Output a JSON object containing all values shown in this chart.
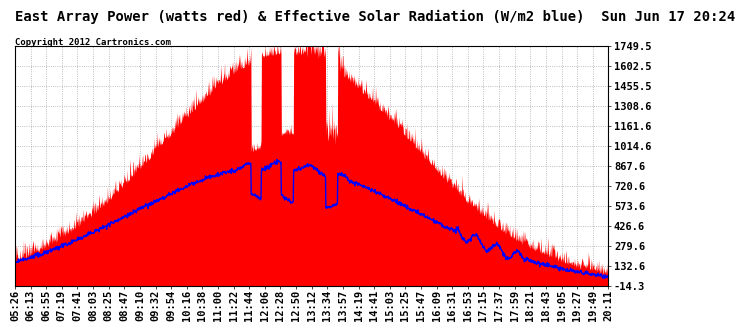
{
  "title": "East Array Power (watts red) & Effective Solar Radiation (W/m2 blue)  Sun Jun 17 20:24",
  "copyright": "Copyright 2012 Cartronics.com",
  "yticks": [
    -14.3,
    132.6,
    279.6,
    426.6,
    573.6,
    720.6,
    867.6,
    1014.6,
    1161.6,
    1308.6,
    1455.5,
    1602.5,
    1749.5
  ],
  "ylim": [
    -14.3,
    1749.5
  ],
  "xtick_labels": [
    "05:26",
    "06:13",
    "06:55",
    "07:19",
    "07:41",
    "08:03",
    "08:25",
    "08:47",
    "09:10",
    "09:32",
    "09:54",
    "10:16",
    "10:38",
    "11:00",
    "11:22",
    "11:44",
    "12:06",
    "12:28",
    "12:50",
    "13:12",
    "13:34",
    "13:57",
    "14:19",
    "14:41",
    "15:03",
    "15:25",
    "15:47",
    "16:09",
    "16:31",
    "16:53",
    "17:15",
    "17:37",
    "17:59",
    "18:21",
    "18:43",
    "19:05",
    "19:27",
    "19:49",
    "20:11"
  ],
  "bg_color": "#ffffff",
  "plot_bg_color": "#ffffff",
  "grid_color": "#aaaaaa",
  "red_color": "#ff0000",
  "blue_color": "#0000ff",
  "title_fontsize": 10,
  "copyright_fontsize": 6.5,
  "tick_fontsize": 7.5
}
